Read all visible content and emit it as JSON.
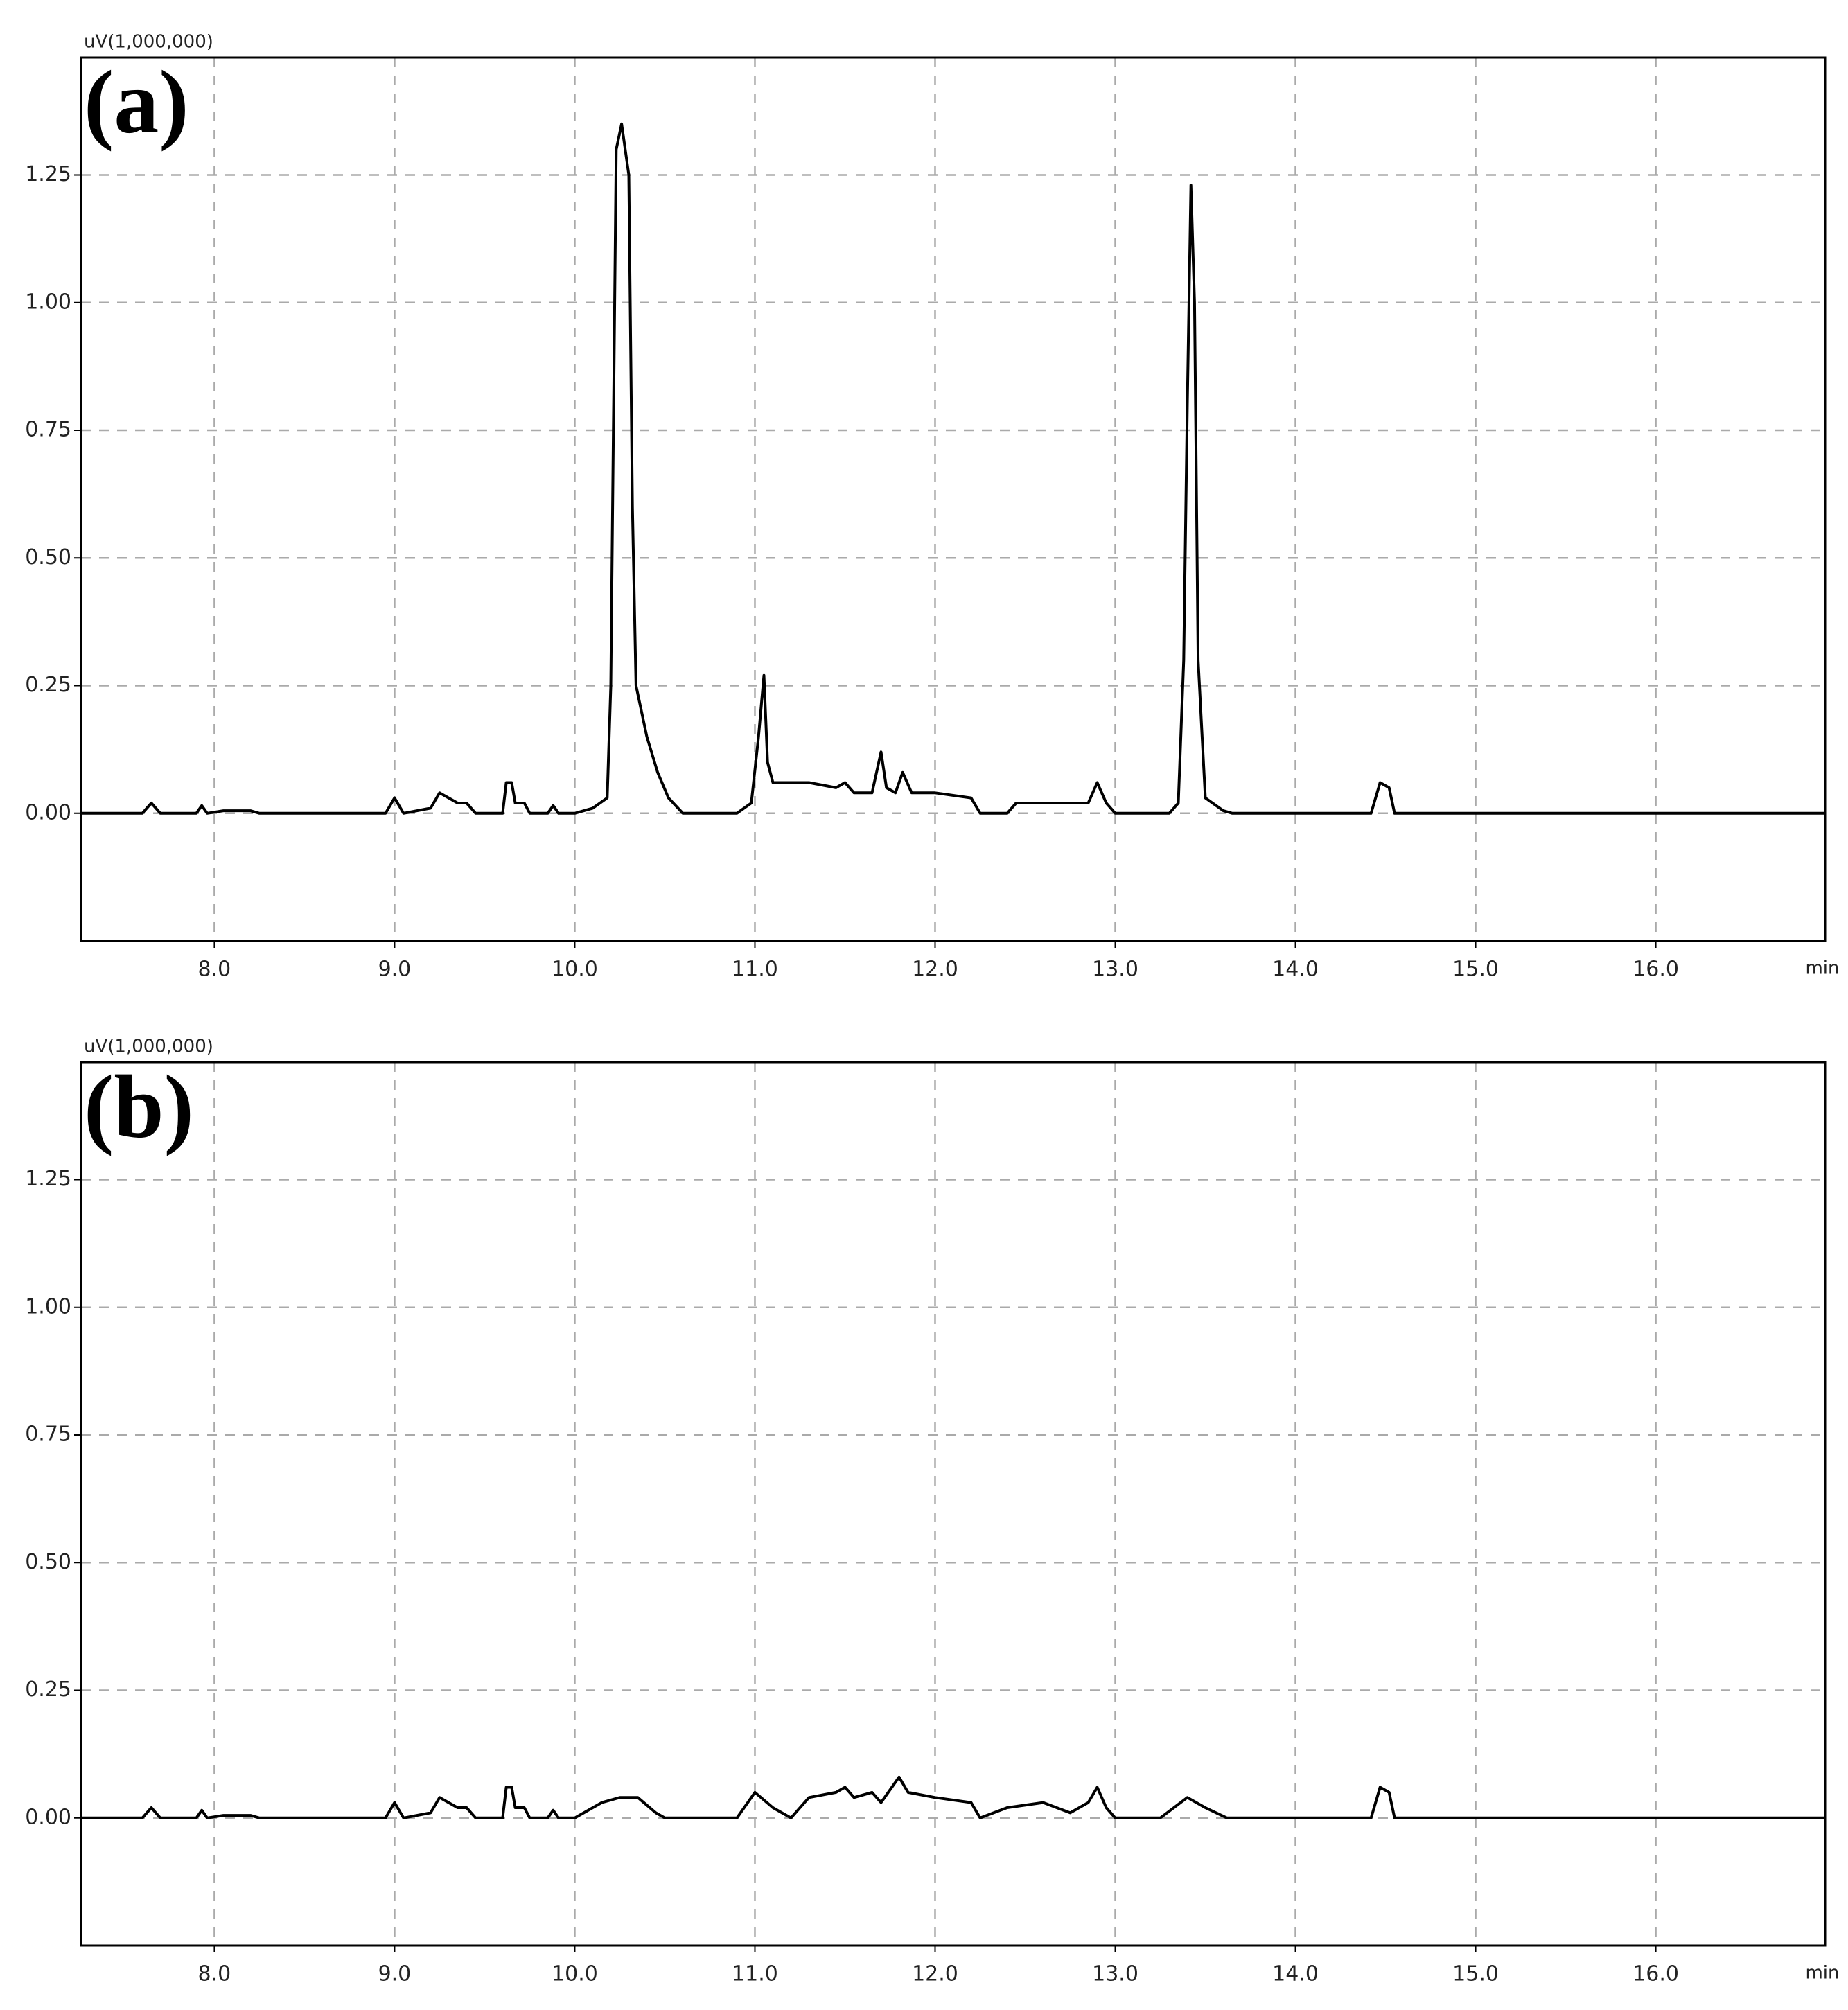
{
  "chart_data": [
    {
      "type": "line",
      "panel_label": "(a)",
      "y_label": "uV(1,000,000)",
      "x_label": "min",
      "grid": true,
      "xlim": [
        7.26,
        16.94
      ],
      "ylim": [
        -0.25,
        1.48
      ],
      "xticks": [
        {
          "value": 8,
          "label": "8.0"
        },
        {
          "value": 9,
          "label": "9.0"
        },
        {
          "value": 10,
          "label": "10.0"
        },
        {
          "value": 11,
          "label": "11.0"
        },
        {
          "value": 12,
          "label": "12.0"
        },
        {
          "value": 13,
          "label": "13.0"
        },
        {
          "value": 14,
          "label": "14.0"
        },
        {
          "value": 15,
          "label": "15.0"
        },
        {
          "value": 16,
          "label": "16.0"
        }
      ],
      "yticks": [
        {
          "value": 0,
          "label": "0.00"
        },
        {
          "value": 0.25,
          "label": "0.25"
        },
        {
          "value": 0.5,
          "label": "0.50"
        },
        {
          "value": 0.75,
          "label": "0.75"
        },
        {
          "value": 1,
          "label": "1.00"
        },
        {
          "value": 1.25,
          "label": "1.25"
        }
      ],
      "color": "#000000",
      "x": [
        7.26,
        7.6,
        7.65,
        7.7,
        7.9,
        7.93,
        7.96,
        8.05,
        8.2,
        8.25,
        8.95,
        9.0,
        9.05,
        9.2,
        9.25,
        9.3,
        9.35,
        9.4,
        9.45,
        9.6,
        9.62,
        9.65,
        9.67,
        9.72,
        9.75,
        9.85,
        9.88,
        9.91,
        10.0,
        10.1,
        10.18,
        10.2,
        10.23,
        10.26,
        10.3,
        10.32,
        10.34,
        10.4,
        10.46,
        10.52,
        10.6,
        10.9,
        10.98,
        11.02,
        11.05,
        11.07,
        11.1,
        11.3,
        11.45,
        11.5,
        11.55,
        11.65,
        11.7,
        11.73,
        11.78,
        11.82,
        11.87,
        12.0,
        12.2,
        12.25,
        12.4,
        12.45,
        12.85,
        12.9,
        12.95,
        13.0,
        13.3,
        13.35,
        13.38,
        13.4,
        13.42,
        13.44,
        13.46,
        13.5,
        13.6,
        13.65,
        14.42,
        14.47,
        14.52,
        14.55,
        16.94
      ],
      "values": [
        0,
        0,
        0.02,
        0,
        0,
        0.015,
        0,
        0.005,
        0.005,
        0,
        0,
        0.03,
        0,
        0.01,
        0.04,
        0.03,
        0.02,
        0.02,
        0,
        0,
        0.06,
        0.06,
        0.02,
        0.02,
        0,
        0,
        0.015,
        0,
        0,
        0.01,
        0.03,
        0.25,
        1.3,
        1.35,
        1.25,
        0.6,
        0.25,
        0.15,
        0.08,
        0.03,
        0,
        0,
        0.02,
        0.15,
        0.27,
        0.1,
        0.06,
        0.06,
        0.05,
        0.06,
        0.04,
        0.04,
        0.12,
        0.05,
        0.04,
        0.08,
        0.04,
        0.04,
        0.03,
        0,
        0,
        0.02,
        0.02,
        0.06,
        0.02,
        0,
        0,
        0.02,
        0.3,
        0.8,
        1.23,
        1.0,
        0.3,
        0.03,
        0.005,
        0,
        0,
        0.06,
        0.05,
        0,
        0
      ]
    },
    {
      "type": "line",
      "panel_label": "(b)",
      "y_label": "uV(1,000,000)",
      "x_label": "min",
      "grid": true,
      "xlim": [
        7.26,
        16.94
      ],
      "ylim": [
        -0.25,
        1.48
      ],
      "xticks": [
        {
          "value": 8,
          "label": "8.0"
        },
        {
          "value": 9,
          "label": "9.0"
        },
        {
          "value": 10,
          "label": "10.0"
        },
        {
          "value": 11,
          "label": "11.0"
        },
        {
          "value": 12,
          "label": "12.0"
        },
        {
          "value": 13,
          "label": "13.0"
        },
        {
          "value": 14,
          "label": "14.0"
        },
        {
          "value": 15,
          "label": "15.0"
        },
        {
          "value": 16,
          "label": "16.0"
        }
      ],
      "yticks": [
        {
          "value": 0,
          "label": "0.00"
        },
        {
          "value": 0.25,
          "label": "0.25"
        },
        {
          "value": 0.5,
          "label": "0.50"
        },
        {
          "value": 0.75,
          "label": "0.75"
        },
        {
          "value": 1,
          "label": "1.00"
        },
        {
          "value": 1.25,
          "label": "1.25"
        }
      ],
      "color": "#000000",
      "x": [
        7.26,
        7.6,
        7.65,
        7.7,
        7.9,
        7.93,
        7.96,
        8.05,
        8.2,
        8.25,
        8.95,
        9.0,
        9.05,
        9.2,
        9.25,
        9.3,
        9.35,
        9.4,
        9.45,
        9.6,
        9.62,
        9.65,
        9.67,
        9.72,
        9.75,
        9.85,
        9.88,
        9.91,
        10.0,
        10.15,
        10.25,
        10.35,
        10.45,
        10.5,
        10.9,
        11.0,
        11.1,
        11.2,
        11.3,
        11.45,
        11.5,
        11.55,
        11.65,
        11.7,
        11.8,
        11.85,
        12.0,
        12.2,
        12.25,
        12.4,
        12.6,
        12.75,
        12.85,
        12.9,
        12.95,
        13.0,
        13.25,
        13.4,
        13.5,
        13.62,
        14.42,
        14.47,
        14.52,
        14.55,
        16.94
      ],
      "values": [
        0,
        0,
        0.02,
        0,
        0,
        0.015,
        0,
        0.005,
        0.005,
        0,
        0,
        0.03,
        0,
        0.01,
        0.04,
        0.03,
        0.02,
        0.02,
        0,
        0,
        0.06,
        0.06,
        0.02,
        0.02,
        0,
        0,
        0.015,
        0,
        0,
        0.03,
        0.04,
        0.04,
        0.01,
        0,
        0,
        0.05,
        0.02,
        0,
        0.04,
        0.05,
        0.06,
        0.04,
        0.05,
        0.03,
        0.08,
        0.05,
        0.04,
        0.03,
        0,
        0.02,
        0.03,
        0.01,
        0.03,
        0.06,
        0.02,
        0,
        0,
        0.04,
        0.02,
        0,
        0,
        0.06,
        0.05,
        0,
        0
      ]
    }
  ]
}
